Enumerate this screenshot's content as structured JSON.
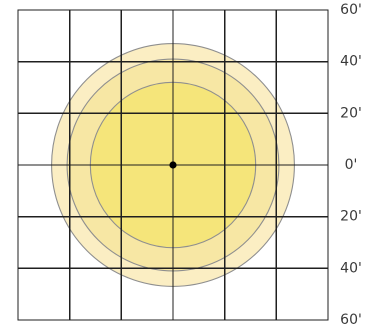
{
  "diagram": {
    "unit": "'",
    "range": [
      -60,
      60
    ],
    "grid_step": 20,
    "center_point": true,
    "y_axis_labels": [
      "60'",
      "40'",
      "20'",
      "0'",
      "20'",
      "40'",
      "60'"
    ],
    "rings": [
      {
        "radius": 47,
        "color": "#fbeec3"
      },
      {
        "radius": 41,
        "color": "#f7e7a4"
      },
      {
        "radius": 32,
        "color": "#f5e57a"
      }
    ],
    "colors": {
      "grid": "#1f1f1f",
      "ring_stroke": "#8f8f8f",
      "center_dot": "#000000",
      "label": "#3a3a3a"
    }
  }
}
